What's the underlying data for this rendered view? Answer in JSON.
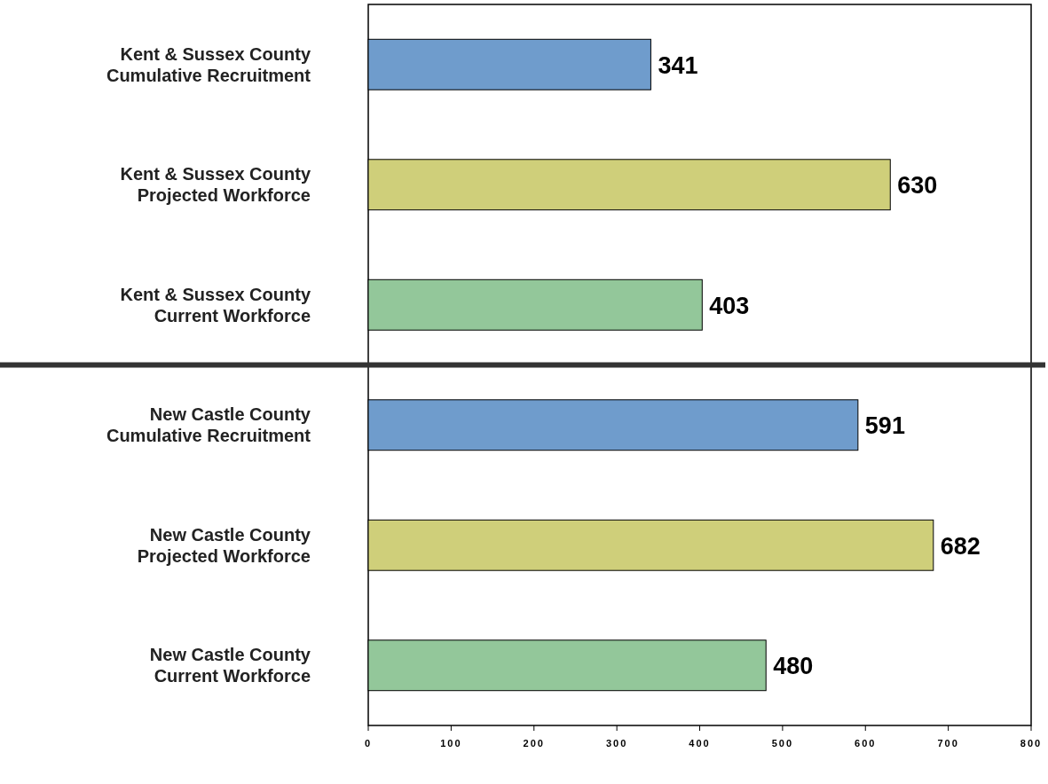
{
  "chart_data": {
    "type": "bar",
    "orientation": "horizontal",
    "categories": [
      "Kent & Sussex County\nCumulative Recruitment",
      "Kent & Sussex County\nProjected Workforce",
      "Kent & Sussex County\nCurrent Workforce",
      "New Castle County\nCumulative Recruitment",
      "New Castle County\nProjected Workforce",
      "New Castle County\nCurrent Workforce"
    ],
    "values": [
      341,
      630,
      403,
      591,
      682,
      480
    ],
    "colors": [
      "#6f9ccc",
      "#cfcf7a",
      "#93c79a",
      "#6f9ccc",
      "#cfcf7a",
      "#93c79a"
    ],
    "data_labels": true,
    "xlim": [
      0,
      800
    ],
    "xticks": [
      0,
      100,
      200,
      300,
      400,
      500,
      600,
      700,
      800
    ],
    "grid": false
  }
}
